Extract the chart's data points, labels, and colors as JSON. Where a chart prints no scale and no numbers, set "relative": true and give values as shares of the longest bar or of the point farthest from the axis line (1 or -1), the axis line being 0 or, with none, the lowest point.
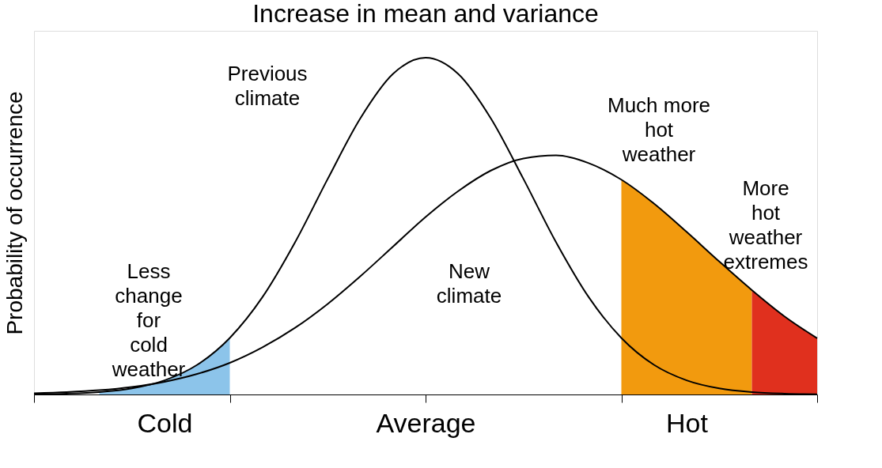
{
  "chart_data": {
    "type": "line",
    "title": "Increase in mean and variance",
    "ylabel": "Probability of occurrence",
    "relative": true,
    "categories": [
      null,
      null,
      null,
      null,
      "Cold",
      null,
      null,
      null,
      null,
      null,
      null,
      null,
      "Average",
      null,
      null,
      null,
      null,
      null,
      null,
      null,
      "Hot",
      null,
      null,
      null,
      null
    ],
    "series": [
      {
        "type": "area",
        "color": "#8cc4ea",
        "values": [
          null,
          null,
          0.007,
          0.018,
          0.042,
          0.088,
          0.168,
          null,
          null,
          null,
          null,
          null,
          null,
          null,
          null,
          null,
          null,
          null,
          null,
          null,
          null,
          null,
          null,
          null,
          null
        ]
      },
      {
        "type": "area",
        "color": "#f29a0e",
        "values": [
          null,
          null,
          null,
          null,
          null,
          null,
          null,
          null,
          null,
          null,
          null,
          null,
          null,
          null,
          null,
          null,
          null,
          null,
          0.638,
          0.567,
          0.483,
          0.395,
          0.31,
          null,
          null
        ]
      },
      {
        "type": "area",
        "color": "#e0301e",
        "values": [
          null,
          null,
          null,
          null,
          null,
          null,
          null,
          null,
          null,
          null,
          null,
          null,
          null,
          null,
          null,
          null,
          null,
          null,
          null,
          null,
          null,
          null,
          0.31,
          0.232,
          0.167
        ]
      },
      {
        "color": "#000000",
        "values": [
          0.0008,
          0.0025,
          0.007,
          0.018,
          0.042,
          0.088,
          0.168,
          0.289,
          0.452,
          0.64,
          0.82,
          0.952,
          1,
          0.952,
          0.82,
          0.64,
          0.452,
          0.289,
          0.168,
          0.088,
          0.042,
          0.018,
          0.007,
          0.0025,
          0.0008
        ]
      },
      {
        "color": "#000000",
        "values": [
          0.0037,
          0.007,
          0.0127,
          0.0224,
          0.0378,
          0.061,
          0.094,
          0.14,
          0.198,
          0.269,
          0.351,
          0.439,
          0.527,
          0.604,
          0.665,
          0.701,
          0.71,
          0.687,
          0.638,
          0.567,
          0.483,
          0.395,
          0.31,
          0.232,
          0.167
        ]
      }
    ],
    "annotations": [
      "Previous\nclimate",
      "New\nclimate",
      "Less\nchange\nfor\ncold\nweather",
      "Much more\nhot\nweather",
      "More\nhot\nweather\nextremes"
    ],
    "grid": false
  }
}
